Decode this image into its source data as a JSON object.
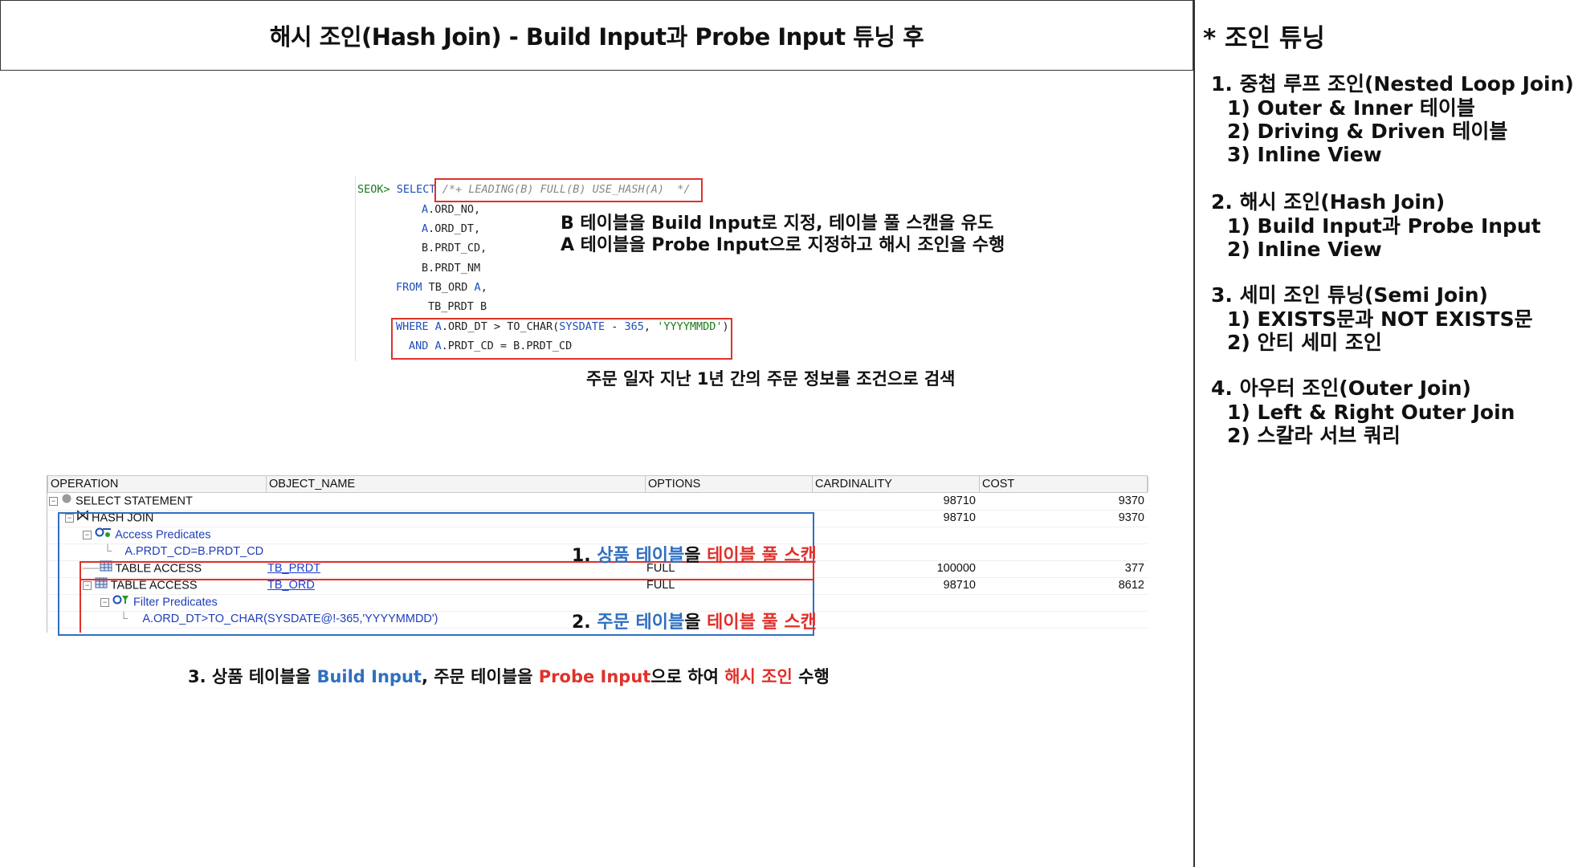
{
  "header": {
    "title": "해시 조인(Hash Join) - Build Input과 Probe Input 튜닝 후"
  },
  "sidebar": {
    "title": "* 조인 튜닝",
    "sections": [
      {
        "heading": "1.  중첩 루프 조인(Nested Loop Join)",
        "items": [
          "1) Outer & Inner 테이블",
          "2) Driving & Driven 테이블",
          "3) Inline View"
        ]
      },
      {
        "heading": "2. 해시 조인(Hash Join)",
        "items": [
          "1) Build Input과 Probe Input",
          "2) Inline View"
        ]
      },
      {
        "heading": "3. 세미 조인 튜닝(Semi Join)",
        "items": [
          "1) EXISTS문과 NOT EXISTS문",
          "2) 안티 세미 조인"
        ]
      },
      {
        "heading": "4. 아우터 조인(Outer Join)",
        "items": [
          "1) Left & Right Outer Join",
          "2) 스칼라 서브 쿼리"
        ]
      }
    ]
  },
  "sql": {
    "prompt": "SEOK>",
    "select_kw": "SELECT",
    "hint": "/*+ LEADING(B) FULL(B) USE_HASH(A)  */",
    "col1_alias": "A",
    "col1": ".ORD_NO,",
    "col2_alias": "A",
    "col2": ".ORD_DT,",
    "col3": "B.PRDT_CD,",
    "col4": "B.PRDT_NM",
    "from_kw": "FROM",
    "from_table": " TB_ORD ",
    "from_alias": "A",
    "from_comma": ",",
    "table2": "TB_PRDT B",
    "where_kw": "WHERE",
    "where_alias": "A",
    "where_rest": ".ORD_DT > TO_CHAR(",
    "sysdate": "SYSDATE",
    "minus": " - ",
    "days": "365",
    "comma": ", ",
    "fmt": "'YYYYMMDD'",
    "close": ")",
    "and_kw": "AND",
    "and_alias": "A",
    "and_rest": ".PRDT_CD = B.PRDT_CD"
  },
  "annotations": {
    "hint_note_1": "B 테이블을 Build Input로 지정, 테이블 풀 스캔을 유도",
    "hint_note_2": "A 테이블을 Probe Input으로 지정하고 해시 조인을 수행",
    "where_note": "주문 일자 지난 1년 간의 주문 정보를 조건으로 검색",
    "step1_num": "1. ",
    "step1_a": "상품 테이블",
    "step1_b": "을 ",
    "step1_c": "테이블 풀 스캔",
    "step2_num": "2. ",
    "step2_a": "주문 테이블",
    "step2_b": "을 ",
    "step2_c": "테이블 풀 스캔",
    "step3_a": "3. 상품 테이블을 ",
    "step3_b": "Build Input",
    "step3_c": ", 주문 테이블을 ",
    "step3_d": "Probe Input",
    "step3_e": "으로 하여 ",
    "step3_f": "해시 조인",
    "step3_g": " 수행"
  },
  "plan": {
    "columns": [
      "OPERATION",
      "OBJECT_NAME",
      "OPTIONS",
      "CARDINALITY",
      "COST"
    ],
    "rows": [
      {
        "op": "SELECT STATEMENT",
        "object": "",
        "options": "",
        "cardinality": "98710",
        "cost": "9370"
      },
      {
        "op": "HASH JOIN",
        "object": "",
        "options": "",
        "cardinality": "98710",
        "cost": "9370"
      },
      {
        "op": "Access Predicates",
        "object": "",
        "options": "",
        "cardinality": "",
        "cost": ""
      },
      {
        "op": "A.PRDT_CD=B.PRDT_CD",
        "object": "",
        "options": "",
        "cardinality": "",
        "cost": ""
      },
      {
        "op": "TABLE ACCESS",
        "object": "TB_PRDT",
        "options": "FULL",
        "cardinality": "100000",
        "cost": "377"
      },
      {
        "op": "TABLE ACCESS",
        "object": "TB_ORD",
        "options": "FULL",
        "cardinality": "98710",
        "cost": "8612"
      },
      {
        "op": "Filter Predicates",
        "object": "",
        "options": "",
        "cardinality": "",
        "cost": ""
      },
      {
        "op": "A.ORD_DT>TO_CHAR(SYSDATE@!-365,'YYYYMMDD')",
        "object": "",
        "options": "",
        "cardinality": "",
        "cost": ""
      }
    ]
  },
  "colors": {
    "red": "#e0312b",
    "blue": "#2f6fc1",
    "link": "#1a3fd0"
  }
}
